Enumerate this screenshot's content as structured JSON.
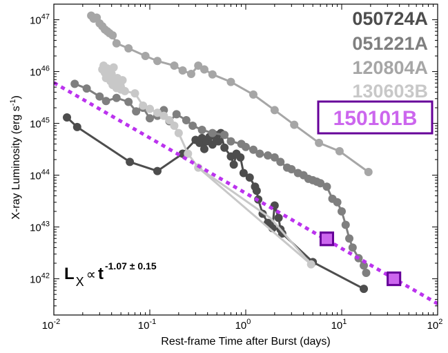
{
  "chart_data": {
    "type": "scatter",
    "xlabel": "Rest-frame Time after Burst (days)",
    "ylabel": "X-ray Luminosity (erg s",
    "ylabel_sup": "-1",
    "ylabel_close": ")",
    "xscale": "log",
    "yscale": "log",
    "xlim": [
      0.01,
      100
    ],
    "ylim": [
      2e+41,
      2e+47
    ],
    "grid": false,
    "legend_position": "top-right",
    "x_ticks": [
      {
        "value": 0.01,
        "base": "10",
        "exp": "-2"
      },
      {
        "value": 0.1,
        "base": "10",
        "exp": "-1"
      },
      {
        "value": 1,
        "base": "10",
        "exp": "0"
      },
      {
        "value": 10,
        "base": "10",
        "exp": "1"
      },
      {
        "value": 100,
        "base": "10",
        "exp": "2"
      }
    ],
    "y_ticks": [
      {
        "value": 1e+42,
        "base": "10",
        "exp": "42"
      },
      {
        "value": 1e+43,
        "base": "10",
        "exp": "43"
      },
      {
        "value": 1e+44,
        "base": "10",
        "exp": "44"
      },
      {
        "value": 1e+45,
        "base": "10",
        "exp": "45"
      },
      {
        "value": 1e+46,
        "base": "10",
        "exp": "46"
      },
      {
        "value": 1e+47,
        "base": "10",
        "exp": "47"
      }
    ],
    "annotation": {
      "L": "L",
      "sub": "X",
      "prop": "∝",
      "t": "t",
      "exp": "-1.07 ± 0.15"
    },
    "fit_line": {
      "x": [
        0.01,
        100
      ],
      "y": [
        6.1e+45,
        3.3e+41
      ],
      "color": "#bb33ee",
      "style": "dotted"
    },
    "series": [
      {
        "name": "050724A",
        "color": "#4d4d4d",
        "line": true,
        "x": [
          0.0137,
          0.0175,
          0.062,
          0.12,
          0.22,
          0.3,
          0.33,
          0.35,
          0.37,
          0.39,
          0.42,
          0.45,
          0.48,
          0.52,
          0.55,
          0.6,
          0.7,
          0.75,
          0.8,
          0.88,
          0.95,
          1.1,
          1.25,
          1.3,
          1.35,
          1.5,
          1.7,
          1.9,
          2.0,
          2.2,
          2.3,
          2.4,
          5.0,
          17.0
        ],
        "y": [
          1.3e+45,
          8.5e+44,
          1.8e+44,
          1.2e+44,
          2.6e+44,
          4.8e+44,
          4.2e+44,
          5.2e+44,
          3.2e+44,
          4.5e+44,
          5.5e+44,
          3.9e+44,
          6e+44,
          4.5e+44,
          6.5e+44,
          3.4e+44,
          2.3e+44,
          1.6e+44,
          2.6e+44,
          2.2e+44,
          1.1e+44,
          9e+43,
          6e+43,
          5e+43,
          3.4e+43,
          1.8e+43,
          1.2e+43,
          9.5e+42,
          2.6e+43,
          1.5e+43,
          9e+42,
          7.5e+42,
          2.1e+42,
          6.4e+41
        ]
      },
      {
        "name": "051221A",
        "color": "#7f7f7f",
        "line": true,
        "x": [
          0.0165,
          0.022,
          0.03,
          0.035,
          0.045,
          0.06,
          0.072,
          0.085,
          0.1,
          0.12,
          0.14,
          0.16,
          0.19,
          0.24,
          0.28,
          0.35,
          0.45,
          0.6,
          0.7,
          0.9,
          1.0,
          1.2,
          1.4,
          1.7,
          2.0,
          2.3,
          2.7,
          3.0,
          3.5,
          4.0,
          4.5,
          5.0,
          5.5,
          6.0,
          7.0,
          8.0,
          9.0,
          10.0,
          11.0,
          12.0,
          13.0,
          15.0,
          17.0,
          18.0
        ],
        "y": [
          5.8e+45,
          4.7e+45,
          3.3e+45,
          2.7e+45,
          3.1e+45,
          2.6e+45,
          1.7e+45,
          2e+45,
          1.25e+45,
          1.4e+45,
          1.8e+45,
          1.1e+45,
          1.5e+45,
          1.15e+45,
          9e+44,
          7.5e+44,
          6.5e+44,
          6e+44,
          4.5e+44,
          4e+44,
          3.5e+44,
          3.1e+44,
          2.6e+44,
          2.4e+44,
          2.2e+44,
          1.8e+44,
          1.4e+44,
          1.3e+44,
          1.1e+44,
          1e+44,
          8.5e+43,
          8e+43,
          7.5e+43,
          7e+43,
          6e+43,
          3.5e+43,
          3e+43,
          2e+43,
          1.1e+43,
          6e+42,
          4e+42,
          2.5e+42,
          1.8e+42,
          1.3e+42
        ]
      },
      {
        "name": "120804A",
        "color": "#a6a6a6",
        "line": true,
        "x": [
          0.0245,
          0.026,
          0.028,
          0.03,
          0.032,
          0.034,
          0.036,
          0.038,
          0.041,
          0.045,
          0.06,
          0.09,
          0.12,
          0.18,
          0.22,
          0.27,
          0.32,
          0.37,
          0.45,
          0.7,
          1.2,
          2.0,
          3.2,
          5.8,
          9.5,
          19.0
        ],
        "y": [
          1.2e+47,
          1.05e+47,
          1.1e+47,
          8.5e+46,
          7.5e+46,
          6.5e+46,
          6e+46,
          5.5e+46,
          5e+46,
          3.5e+46,
          2.8e+46,
          2e+46,
          1.6e+46,
          1.3e+46,
          1.05e+46,
          9e+45,
          1.3e+46,
          1.1e+46,
          8.8e+45,
          6.3e+45,
          3.6e+45,
          1.8e+45,
          9.4e+44,
          4.2e+44,
          2.9e+44,
          1.15e+44
        ]
      },
      {
        "name": "130603B",
        "color": "#c8c8c8",
        "line": true,
        "x": [
          0.032,
          0.033,
          0.034,
          0.035,
          0.036,
          0.037,
          0.038,
          0.039,
          0.04,
          0.041,
          0.042,
          0.043,
          0.044,
          0.045,
          0.046,
          0.047,
          0.048,
          0.05,
          0.052,
          0.055,
          0.07,
          0.085,
          0.1,
          0.12,
          0.14,
          0.16,
          0.18,
          0.2,
          0.25,
          0.32,
          4.8
        ],
        "y": [
          1.1e+46,
          1.3e+46,
          9.5e+45,
          7.5e+45,
          1.15e+46,
          1e+46,
          8.5e+45,
          6.5e+45,
          9e+45,
          5.5e+45,
          1.2e+46,
          7e+45,
          5.8e+45,
          4.8e+45,
          7.5e+45,
          5.2e+45,
          6.2e+45,
          4.5e+45,
          6.8e+45,
          4.2e+45,
          3.8e+45,
          2.2e+45,
          1.9e+45,
          1.6e+45,
          1.4e+45,
          1.15e+45,
          9e+44,
          6.5e+44,
          2.6e+44,
          1.4e+44,
          1.9e+42
        ]
      },
      {
        "name": "150101B",
        "color": "#cc66ee",
        "edge": "#660099",
        "line": false,
        "marker": "square",
        "x": [
          7.0,
          35.0
        ],
        "y": [
          5.9e+42,
          1e+42
        ]
      }
    ],
    "extra_segments": [
      {
        "color": "#c8c8c8",
        "x": [
          0.32,
          1.8
        ],
        "y": [
          1.4e+44,
          1.5e+43
        ]
      },
      {
        "color": "#c8c8c8",
        "x": [
          1.8,
          4.8
        ],
        "y": [
          1.5e+43,
          1.9e+42
        ]
      }
    ]
  }
}
